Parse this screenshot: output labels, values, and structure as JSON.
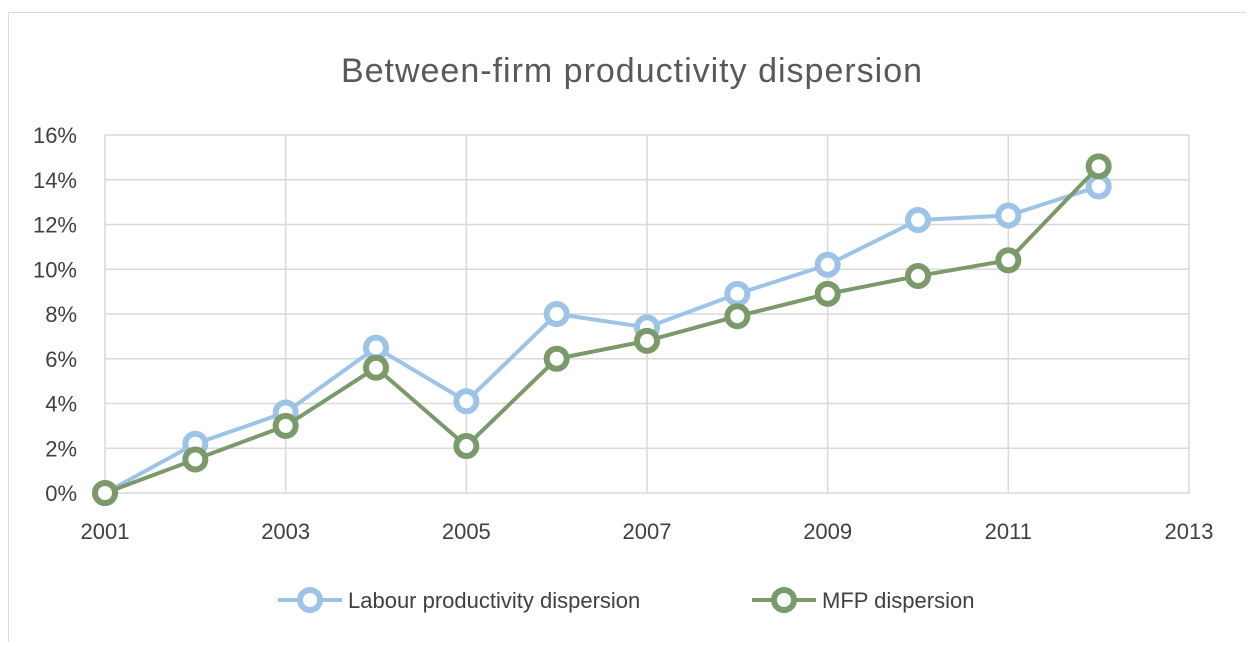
{
  "chart_data": {
    "type": "line",
    "title": "Between-firm productivity dispersion",
    "xlabel": "",
    "ylabel": "",
    "xlim": [
      2001,
      2013
    ],
    "ylim": [
      0,
      16
    ],
    "x_ticks": [
      "2001",
      "2003",
      "2005",
      "2007",
      "2009",
      "2011",
      "2013"
    ],
    "y_ticks": [
      "0%",
      "2%",
      "4%",
      "6%",
      "8%",
      "10%",
      "12%",
      "14%",
      "16%"
    ],
    "grid": true,
    "legend_position": "bottom",
    "x": [
      2001,
      2002,
      2003,
      2004,
      2005,
      2006,
      2007,
      2008,
      2009,
      2010,
      2011,
      2012
    ],
    "series": [
      {
        "name": "Labour productivity dispersion",
        "color": "#9dc3e6",
        "values": [
          0,
          2.2,
          3.6,
          6.5,
          4.1,
          8.0,
          7.4,
          8.9,
          10.2,
          12.2,
          12.4,
          13.7
        ]
      },
      {
        "name": "MFP dispersion",
        "color": "#7a9a6a",
        "values": [
          0,
          1.5,
          3.0,
          5.6,
          2.1,
          6.0,
          6.8,
          7.9,
          8.9,
          9.7,
          10.4,
          14.6
        ]
      }
    ]
  }
}
